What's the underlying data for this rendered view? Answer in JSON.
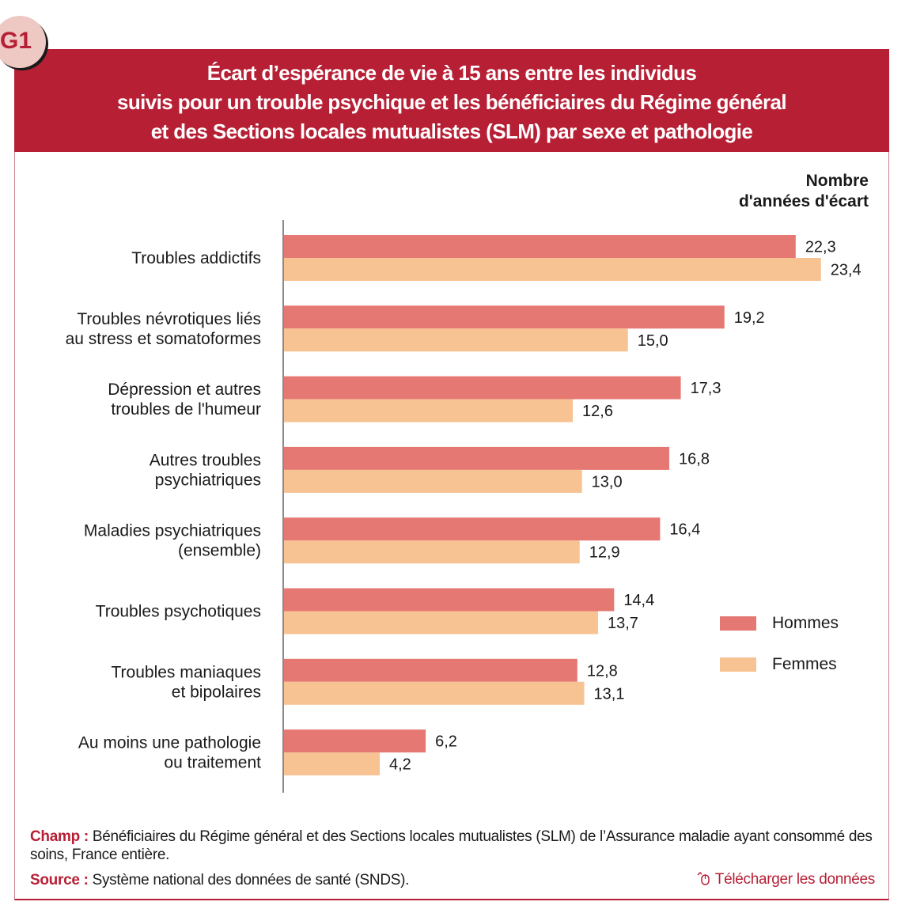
{
  "badge": "G1",
  "title_lines": [
    "Écart d’espérance de vie à 15 ans entre les individus",
    "suivis pour un trouble psychique et les bénéficiaires du Régime général",
    "et des Sections locales mutualistes (SLM) par sexe et pathologie"
  ],
  "unit_lines": [
    "Nombre",
    "d'années d'écart"
  ],
  "colors": {
    "hommes": "#e67873",
    "femmes": "#f8c393",
    "accent": "#b71f35"
  },
  "chart_data": {
    "type": "bar",
    "orientation": "horizontal",
    "title": "Écart d’espérance de vie à 15 ans entre les individus suivis pour un trouble psychique et les bénéficiaires du Régime général et des Sections locales mutualistes (SLM) par sexe et pathologie",
    "xlabel": "Nombre d'années d'écart",
    "ylabel": "",
    "xlim": [
      0,
      25
    ],
    "grid": false,
    "legend_position": "right",
    "categories": [
      [
        "Troubles addictifs"
      ],
      [
        "Troubles névrotiques liés",
        "au stress et somatoformes"
      ],
      [
        "Dépression et autres",
        "troubles de l'humeur"
      ],
      [
        "Autres troubles",
        "psychiatriques"
      ],
      [
        "Maladies psychiatriques",
        "(ensemble)"
      ],
      [
        "Troubles psychotiques"
      ],
      [
        "Troubles maniaques",
        "et bipolaires"
      ],
      [
        "Au moins une pathologie",
        "ou traitement"
      ]
    ],
    "series": [
      {
        "name": "Hommes",
        "color": "#e67873",
        "values": [
          22.3,
          19.2,
          17.3,
          16.8,
          16.4,
          14.4,
          12.8,
          6.2
        ]
      },
      {
        "name": "Femmes",
        "color": "#f8c393",
        "values": [
          23.4,
          15.0,
          12.6,
          13.0,
          12.9,
          13.7,
          13.1,
          4.2
        ]
      }
    ]
  },
  "notes": {
    "champ_label": "Champ :",
    "champ_text": " Bénéficiaires du Régime général et des Sections locales mutualistes (SLM) de l’Assurance maladie ayant consommé des soins, France entière.",
    "source_label": "Source :",
    "source_text": " Système national des données de santé (SNDS).",
    "download_label": "Télécharger les données",
    "download_icon": "mouse-icon"
  }
}
